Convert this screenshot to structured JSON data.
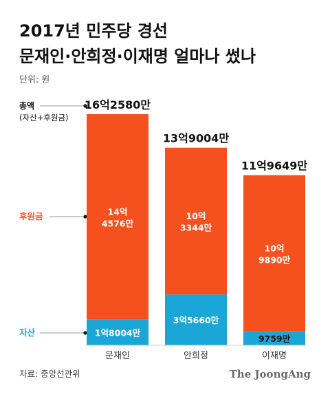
{
  "title_line1": "2017년 민주당 경선",
  "title_line2": "문재인·안희정·이재명 얼마나 썼나",
  "unit_label": "단위: 원",
  "legend": {
    "total_line1": "총액",
    "total_line2": "(자산+후원금)",
    "donation": "후원금",
    "asset": "자산"
  },
  "source": "자료: 중앙선관위",
  "brand": "The JoongAng",
  "colors": {
    "donation": "#f4511e",
    "asset": "#1aa6d6"
  },
  "chart_data": {
    "type": "bar",
    "stacked": true,
    "categories": [
      "문재인",
      "안희정",
      "이재명"
    ],
    "series": [
      {
        "name": "자산",
        "values": [
          180040000,
          356600000,
          97590000
        ],
        "labels": [
          "1억8004만",
          "3억5660만",
          "9759만"
        ]
      },
      {
        "name": "후원금",
        "values": [
          1445760000,
          1033440000,
          1098900000
        ],
        "labels": [
          "14억\n4576만",
          "10억\n3344만",
          "10억\n9890만"
        ]
      }
    ],
    "totals": [
      1625800000,
      1390040000,
      1196490000
    ],
    "total_labels": [
      "16억2580만",
      "13억9004만",
      "11억9649만"
    ],
    "ylim": [
      0,
      1625800000
    ]
  }
}
